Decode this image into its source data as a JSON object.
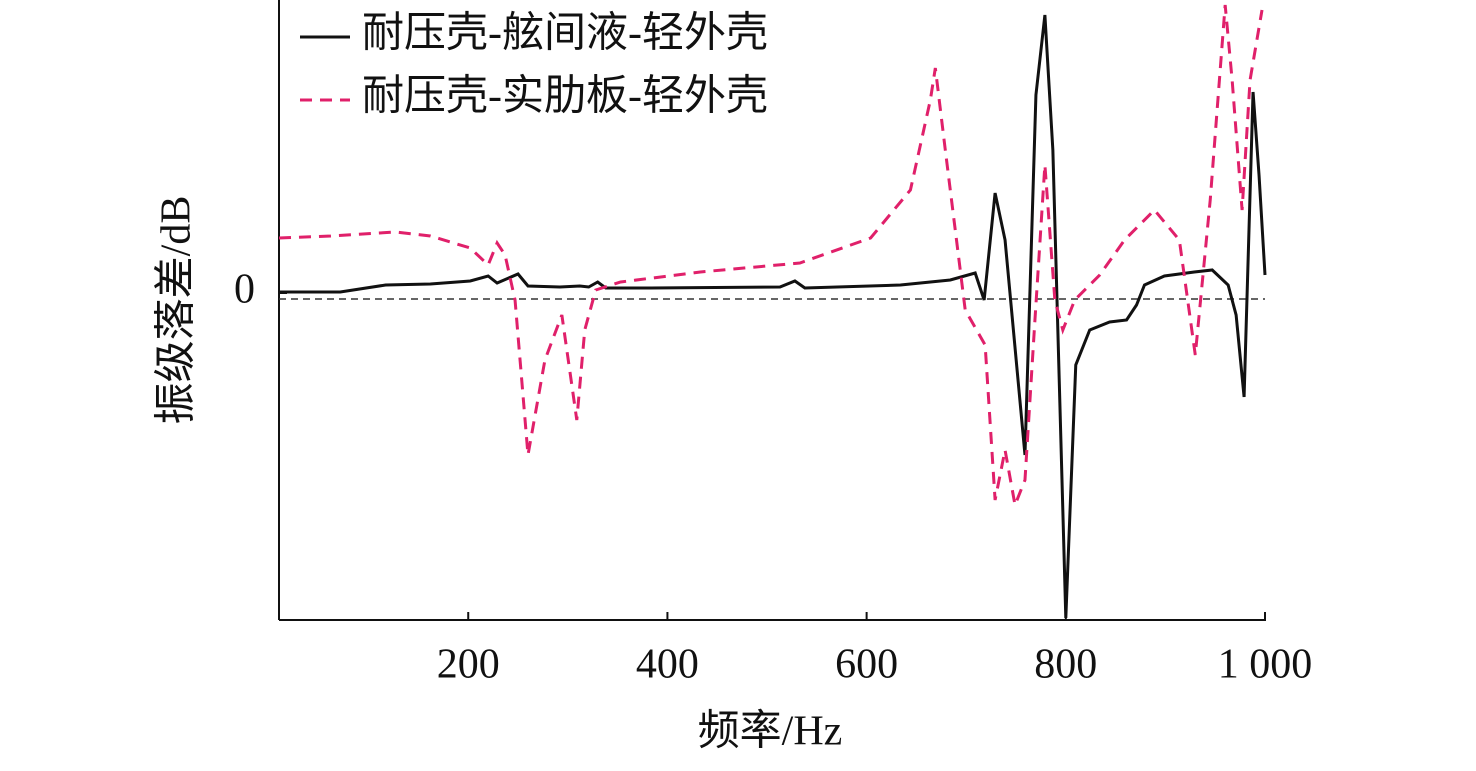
{
  "chart_data": {
    "type": "line",
    "x_label": "频率/Hz",
    "y_label": "振级落差/dB",
    "xlim": [
      10,
      1000
    ],
    "ylim": [
      -32.7,
      29.3
    ],
    "xticks": [
      200,
      400,
      600,
      800,
      {
        "value": 1000,
        "label": "1 000"
      }
    ],
    "yticks": [
      0
    ],
    "hline": -0.6,
    "legend": "top-left",
    "series": [
      {
        "name": "耐压壳-舷间液-轻外壳",
        "color": "#111111",
        "dash": "solid",
        "x": [
          10,
          71.5,
          117,
          162,
          202,
          220,
          229,
          250,
          260,
          292,
          312,
          321,
          330,
          338,
          383,
          513,
          528,
          538,
          634,
          684,
          709,
          718,
          729,
          739,
          759,
          770,
          779,
          787,
          800,
          810,
          824,
          844,
          861,
          871,
          879,
          899,
          929,
          947,
          963,
          971,
          979,
          988,
          994,
          1000
        ],
        "values": [
          0.1,
          0.1,
          0.8,
          0.9,
          1.2,
          1.7,
          1.0,
          1.9,
          0.7,
          0.6,
          0.7,
          0.6,
          1.1,
          0.5,
          0.5,
          0.6,
          1.2,
          0.5,
          0.8,
          1.3,
          2.0,
          -0.7,
          10.0,
          5.3,
          -16.2,
          19.8,
          27.8,
          14.3,
          -32.5,
          -7.2,
          -3.7,
          -2.9,
          -2.7,
          -1.2,
          0.8,
          1.7,
          2.1,
          2.3,
          0.8,
          -2.2,
          -10.4,
          20.1,
          11.8,
          1.8
        ]
      },
      {
        "name": "耐压壳-实肋板-轻外壳",
        "color": "#e0206a",
        "dash": "dashed",
        "x": [
          10,
          62,
          127,
          162,
          202,
          220,
          229,
          237,
          247,
          260,
          277,
          294,
          309,
          317,
          328,
          353,
          433,
          533,
          604,
          644,
          664,
          669,
          679,
          699,
          719,
          729,
          739,
          749,
          759,
          769,
          779,
          789,
          797,
          809,
          834,
          859,
          889,
          914,
          930,
          945,
          960,
          967,
          977,
          985,
          997
        ],
        "values": [
          5.5,
          5.7,
          6.1,
          5.7,
          4.5,
          2.8,
          5.0,
          3.8,
          -0.7,
          -16.2,
          -6.7,
          -2.2,
          -12.7,
          -3.7,
          0.3,
          1.1,
          2.1,
          3.0,
          5.5,
          10.3,
          19.3,
          22.5,
          14.3,
          -1.7,
          -5.2,
          -20.7,
          -15.7,
          -21.2,
          -18.7,
          -2.7,
          12.8,
          -0.7,
          -3.7,
          -0.7,
          1.8,
          5.3,
          8.3,
          5.3,
          -6.2,
          9.3,
          28.8,
          21.3,
          8.3,
          21.3,
          28.3
        ]
      }
    ]
  }
}
